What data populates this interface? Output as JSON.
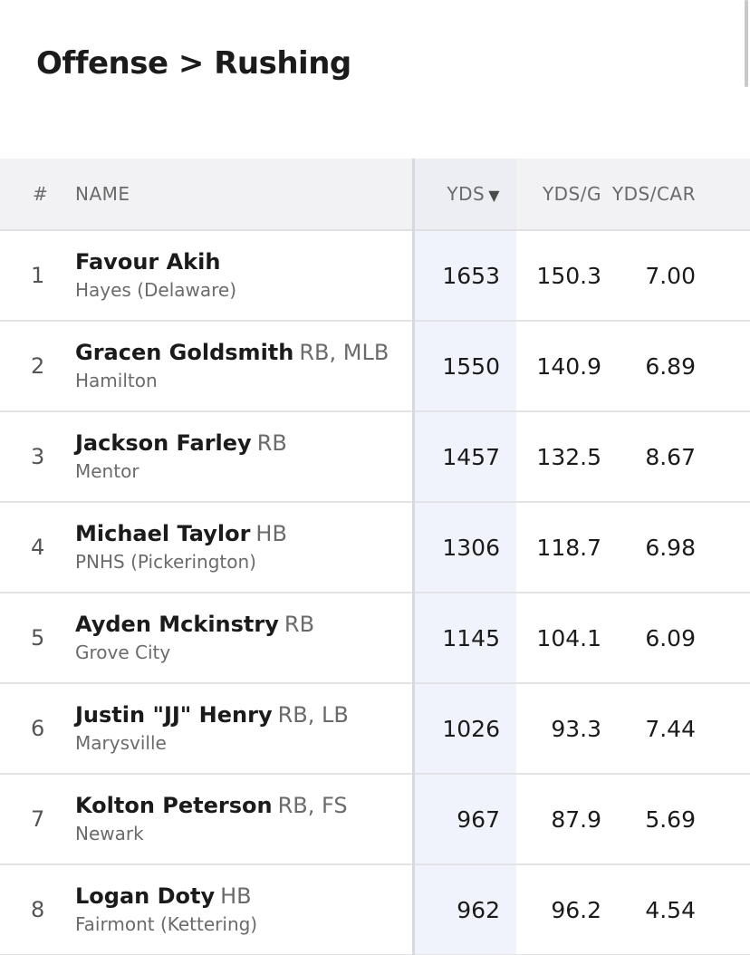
{
  "page": {
    "title": "Offense > Rushing"
  },
  "table": {
    "headers": {
      "rank": "#",
      "name": "NAME",
      "yds": "YDS",
      "yds_per_game": "YDS/G",
      "yds_per_carry": "YDS/CAR"
    },
    "sort": {
      "column": "YDS",
      "direction": "descending",
      "indicator": "▼"
    },
    "rows": [
      {
        "rank": "1",
        "name": "Favour Akih",
        "position": "",
        "school": "Hayes (Delaware)",
        "yds": "1653",
        "yds_per_game": "150.3",
        "yds_per_carry": "7.00"
      },
      {
        "rank": "2",
        "name": "Gracen Goldsmith",
        "position": "RB, MLB",
        "school": "Hamilton",
        "yds": "1550",
        "yds_per_game": "140.9",
        "yds_per_carry": "6.89"
      },
      {
        "rank": "3",
        "name": "Jackson Farley",
        "position": "RB",
        "school": "Mentor",
        "yds": "1457",
        "yds_per_game": "132.5",
        "yds_per_carry": "8.67"
      },
      {
        "rank": "4",
        "name": "Michael Taylor",
        "position": "HB",
        "school": "PNHS (Pickerington)",
        "yds": "1306",
        "yds_per_game": "118.7",
        "yds_per_carry": "6.98"
      },
      {
        "rank": "5",
        "name": "Ayden Mckinstry",
        "position": "RB",
        "school": "Grove City",
        "yds": "1145",
        "yds_per_game": "104.1",
        "yds_per_carry": "6.09"
      },
      {
        "rank": "6",
        "name": "Justin \"JJ\" Henry",
        "position": "RB, LB",
        "school": "Marysville",
        "yds": "1026",
        "yds_per_game": "93.3",
        "yds_per_carry": "7.44"
      },
      {
        "rank": "7",
        "name": "Kolton Peterson",
        "position": "RB, FS",
        "school": "Newark",
        "yds": "967",
        "yds_per_game": "87.9",
        "yds_per_carry": "5.69"
      },
      {
        "rank": "8",
        "name": "Logan Doty",
        "position": "HB",
        "school": "Fairmont (Kettering)",
        "yds": "962",
        "yds_per_game": "96.2",
        "yds_per_carry": "4.54"
      }
    ]
  },
  "colors": {
    "header_bg": "#f2f2f4",
    "sorted_column_bg": "#f0f3fb",
    "divider": "#e3e3e6",
    "muted_text": "#6b6b6b"
  }
}
